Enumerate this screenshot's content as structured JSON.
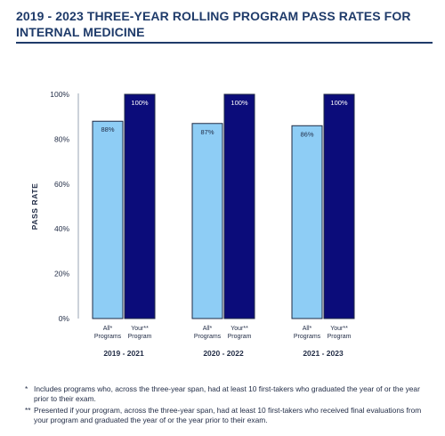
{
  "header": {
    "title_line1": "2019 - 2023 THREE-YEAR ROLLING PROGRAM PASS RATES FOR",
    "title_line2": "INTERNAL MEDICINE"
  },
  "chart_data": {
    "type": "bar",
    "ylabel": "PASS RATE",
    "ylim": [
      0,
      100
    ],
    "yticks": [
      "0%",
      "20%",
      "40%",
      "60%",
      "80%",
      "100%"
    ],
    "grid": false,
    "groups": [
      "2019 - 2021",
      "2020 - 2022",
      "2021 - 2023"
    ],
    "bar_labels": [
      {
        "line1": "All*",
        "line2": "Programs"
      },
      {
        "line1": "Your**",
        "line2": "Program"
      }
    ],
    "series": [
      {
        "values": [
          88,
          87,
          86
        ],
        "labels": [
          "88%",
          "87%",
          "86%"
        ],
        "color": "#8ecdf5"
      },
      {
        "values": [
          100,
          100,
          100
        ],
        "labels": [
          "100%",
          "100%",
          "100%"
        ],
        "color": "#0b0c7a"
      }
    ],
    "axis_color": "#1f2a44"
  },
  "footnotes": [
    {
      "mark": "*",
      "text": "Includes programs who, across the three-year span, had at least 10 first-takers who graduated the year of or the year prior to their exam."
    },
    {
      "mark": "**",
      "text": "Presented if your program, across the three-year span, had at least 10 first-takers who received final evaluations from your program and graduated the year of or the year prior to their exam."
    }
  ]
}
